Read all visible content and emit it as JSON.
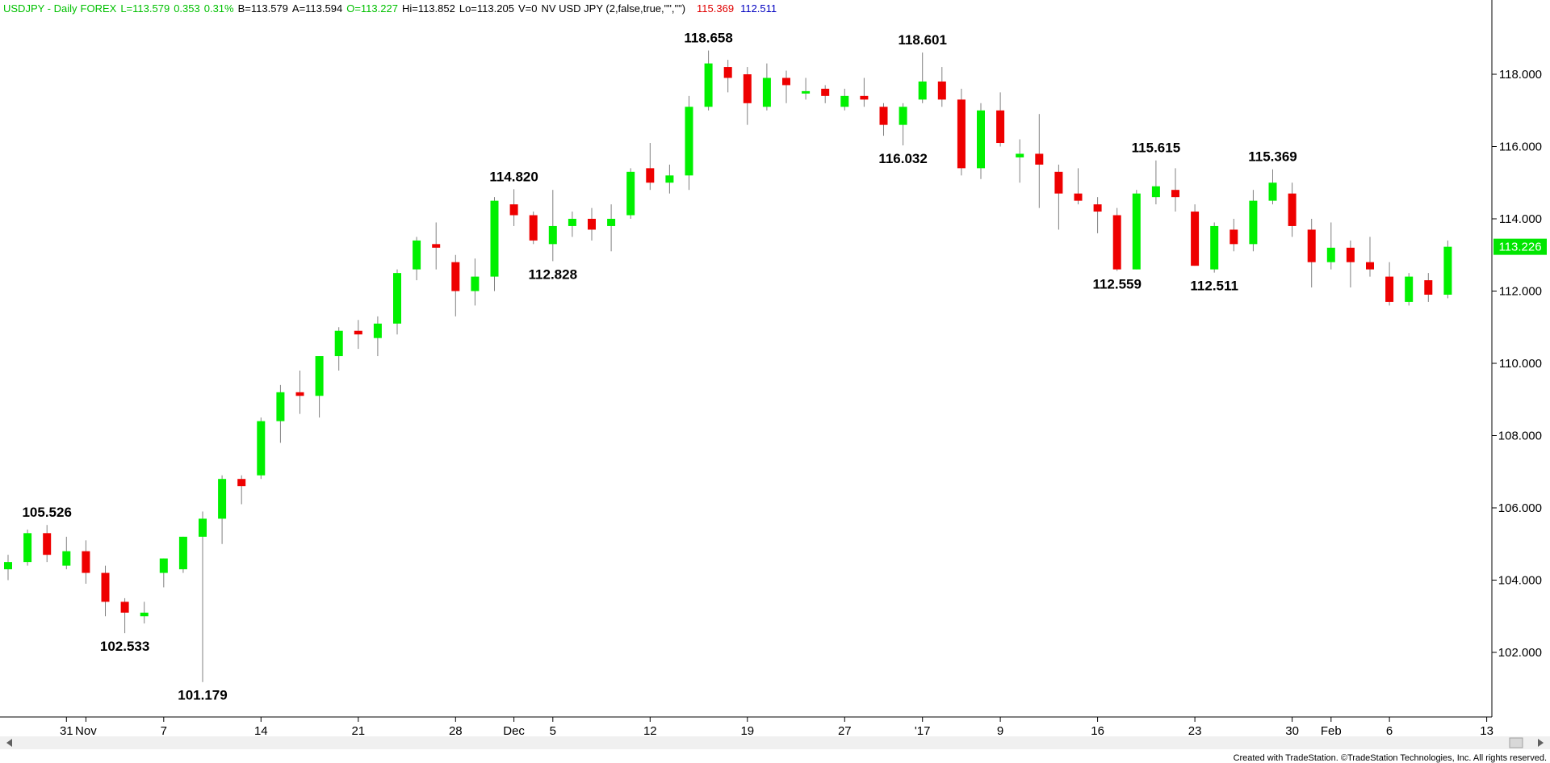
{
  "header": {
    "symbol": "USDJPY",
    "interval": "Daily",
    "market": "FOREX",
    "last": "L=113.579",
    "change": "0.353",
    "change_pct": "0.31%",
    "bid": "B=113.579",
    "ask": "A=113.594",
    "open": "O=113.227",
    "high": "Hi=113.852",
    "low": "Lo=113.205",
    "volume": "V=0",
    "indicator": "NV USD JPY (2,false,true,\"\",\"\")",
    "ind_high": "115.369",
    "ind_low": "112.511"
  },
  "footer": {
    "credit": "Created with TradeStation. ©TradeStation Technologies, Inc. All rights reserved."
  },
  "last_price_label": "113.226",
  "colors": {
    "up": "#00f000",
    "down": "#ee0000",
    "wick": "#808080",
    "header_green": "#00c000",
    "header_red": "#e00000",
    "header_blue": "#0000c0",
    "axis": "#000000",
    "last_price_bg": "#00e600"
  },
  "chart_data": {
    "type": "candlestick",
    "title": "USDJPY - Daily  FOREX",
    "ylim": [
      100,
      120
    ],
    "y_ticks": [
      "102.000",
      "104.000",
      "106.000",
      "108.000",
      "110.000",
      "112.000",
      "114.000",
      "116.000",
      "118.000"
    ],
    "x_ticks": [
      {
        "label": "31",
        "i": 3
      },
      {
        "label": "Nov",
        "i": 4
      },
      {
        "label": "7",
        "i": 8
      },
      {
        "label": "14",
        "i": 13
      },
      {
        "label": "21",
        "i": 18
      },
      {
        "label": "28",
        "i": 23
      },
      {
        "label": "Dec",
        "i": 26
      },
      {
        "label": "5",
        "i": 28
      },
      {
        "label": "12",
        "i": 33
      },
      {
        "label": "19",
        "i": 38
      },
      {
        "label": "27",
        "i": 43
      },
      {
        "label": "'17",
        "i": 47
      },
      {
        "label": "9",
        "i": 51
      },
      {
        "label": "16",
        "i": 56
      },
      {
        "label": "23",
        "i": 61
      },
      {
        "label": "30",
        "i": 66
      },
      {
        "label": "Feb",
        "i": 68
      },
      {
        "label": "6",
        "i": 71
      },
      {
        "label": "13",
        "i": 76
      }
    ],
    "candles": [
      {
        "o": 104.3,
        "h": 104.7,
        "l": 104.0,
        "c": 104.5
      },
      {
        "o": 104.5,
        "h": 105.4,
        "l": 104.4,
        "c": 105.3
      },
      {
        "o": 105.3,
        "h": 105.526,
        "l": 104.5,
        "c": 104.7
      },
      {
        "o": 104.4,
        "h": 105.2,
        "l": 104.3,
        "c": 104.8
      },
      {
        "o": 104.8,
        "h": 105.1,
        "l": 103.9,
        "c": 104.2
      },
      {
        "o": 104.2,
        "h": 104.4,
        "l": 103.0,
        "c": 103.4
      },
      {
        "o": 103.4,
        "h": 103.5,
        "l": 102.533,
        "c": 103.1
      },
      {
        "o": 103.0,
        "h": 103.4,
        "l": 102.8,
        "c": 103.1
      },
      {
        "o": 104.2,
        "h": 104.6,
        "l": 103.8,
        "c": 104.6
      },
      {
        "o": 104.3,
        "h": 105.2,
        "l": 104.2,
        "c": 105.2
      },
      {
        "o": 105.2,
        "h": 105.9,
        "l": 101.179,
        "c": 105.7
      },
      {
        "o": 105.7,
        "h": 106.9,
        "l": 105.0,
        "c": 106.8
      },
      {
        "o": 106.8,
        "h": 106.9,
        "l": 106.1,
        "c": 106.6
      },
      {
        "o": 106.9,
        "h": 108.5,
        "l": 106.8,
        "c": 108.4
      },
      {
        "o": 108.4,
        "h": 109.4,
        "l": 107.8,
        "c": 109.2
      },
      {
        "o": 109.2,
        "h": 109.8,
        "l": 108.6,
        "c": 109.1
      },
      {
        "o": 109.1,
        "h": 110.2,
        "l": 108.5,
        "c": 110.2
      },
      {
        "o": 110.2,
        "h": 111.0,
        "l": 109.8,
        "c": 110.9
      },
      {
        "o": 110.9,
        "h": 111.2,
        "l": 110.4,
        "c": 110.8
      },
      {
        "o": 110.7,
        "h": 111.3,
        "l": 110.2,
        "c": 111.1
      },
      {
        "o": 111.1,
        "h": 112.6,
        "l": 110.8,
        "c": 112.5
      },
      {
        "o": 112.6,
        "h": 113.5,
        "l": 112.3,
        "c": 113.4
      },
      {
        "o": 113.3,
        "h": 113.9,
        "l": 112.6,
        "c": 113.2
      },
      {
        "o": 112.8,
        "h": 113.0,
        "l": 111.3,
        "c": 112.0
      },
      {
        "o": 112.0,
        "h": 112.9,
        "l": 111.6,
        "c": 112.4
      },
      {
        "o": 112.4,
        "h": 114.6,
        "l": 112.0,
        "c": 114.5
      },
      {
        "o": 114.4,
        "h": 114.82,
        "l": 113.8,
        "c": 114.1
      },
      {
        "o": 114.1,
        "h": 114.2,
        "l": 113.3,
        "c": 113.4
      },
      {
        "o": 113.3,
        "h": 114.8,
        "l": 112.828,
        "c": 113.8
      },
      {
        "o": 113.8,
        "h": 114.2,
        "l": 113.5,
        "c": 114.0
      },
      {
        "o": 114.0,
        "h": 114.3,
        "l": 113.4,
        "c": 113.7
      },
      {
        "o": 113.8,
        "h": 114.4,
        "l": 113.1,
        "c": 114.0
      },
      {
        "o": 114.1,
        "h": 115.4,
        "l": 114.0,
        "c": 115.3
      },
      {
        "o": 115.4,
        "h": 116.1,
        "l": 114.8,
        "c": 115.0
      },
      {
        "o": 115.0,
        "h": 115.5,
        "l": 114.7,
        "c": 115.2
      },
      {
        "o": 115.2,
        "h": 117.4,
        "l": 114.8,
        "c": 117.1
      },
      {
        "o": 117.1,
        "h": 118.658,
        "l": 117.0,
        "c": 118.3
      },
      {
        "o": 118.2,
        "h": 118.4,
        "l": 117.5,
        "c": 117.9
      },
      {
        "o": 118.0,
        "h": 118.2,
        "l": 116.6,
        "c": 117.2
      },
      {
        "o": 117.1,
        "h": 118.3,
        "l": 117.0,
        "c": 117.9
      },
      {
        "o": 117.9,
        "h": 118.1,
        "l": 117.2,
        "c": 117.7
      },
      {
        "o": 117.5,
        "h": 117.9,
        "l": 117.3,
        "c": 117.5
      },
      {
        "o": 117.6,
        "h": 117.7,
        "l": 117.2,
        "c": 117.4
      },
      {
        "o": 117.1,
        "h": 117.6,
        "l": 117.0,
        "c": 117.4
      },
      {
        "o": 117.4,
        "h": 117.9,
        "l": 117.1,
        "c": 117.3
      },
      {
        "o": 117.1,
        "h": 117.2,
        "l": 116.3,
        "c": 116.6
      },
      {
        "o": 116.6,
        "h": 117.2,
        "l": 116.032,
        "c": 117.1
      },
      {
        "o": 117.3,
        "h": 118.601,
        "l": 117.2,
        "c": 117.8
      },
      {
        "o": 117.8,
        "h": 118.2,
        "l": 117.1,
        "c": 117.3
      },
      {
        "o": 117.3,
        "h": 117.6,
        "l": 115.2,
        "c": 115.4
      },
      {
        "o": 115.4,
        "h": 117.2,
        "l": 115.1,
        "c": 117.0
      },
      {
        "o": 117.0,
        "h": 117.5,
        "l": 116.0,
        "c": 116.1
      },
      {
        "o": 115.7,
        "h": 116.2,
        "l": 115.0,
        "c": 115.8
      },
      {
        "o": 115.8,
        "h": 116.9,
        "l": 114.3,
        "c": 115.5
      },
      {
        "o": 115.3,
        "h": 115.5,
        "l": 113.7,
        "c": 114.7
      },
      {
        "o": 114.7,
        "h": 115.4,
        "l": 114.4,
        "c": 114.5
      },
      {
        "o": 114.4,
        "h": 114.6,
        "l": 113.6,
        "c": 114.2
      },
      {
        "o": 114.1,
        "h": 114.3,
        "l": 112.559,
        "c": 112.6
      },
      {
        "o": 112.6,
        "h": 114.8,
        "l": 112.6,
        "c": 114.7
      },
      {
        "o": 114.6,
        "h": 115.615,
        "l": 114.4,
        "c": 114.9
      },
      {
        "o": 114.8,
        "h": 115.4,
        "l": 114.2,
        "c": 114.6
      },
      {
        "o": 114.2,
        "h": 114.4,
        "l": 112.7,
        "c": 112.7
      },
      {
        "o": 112.6,
        "h": 113.9,
        "l": 112.511,
        "c": 113.8
      },
      {
        "o": 113.7,
        "h": 114.0,
        "l": 113.1,
        "c": 113.3
      },
      {
        "o": 113.3,
        "h": 114.8,
        "l": 113.1,
        "c": 114.5
      },
      {
        "o": 114.5,
        "h": 115.369,
        "l": 114.4,
        "c": 115.0
      },
      {
        "o": 114.7,
        "h": 115.0,
        "l": 113.5,
        "c": 113.8
      },
      {
        "o": 113.7,
        "h": 114.0,
        "l": 112.1,
        "c": 112.8
      },
      {
        "o": 112.8,
        "h": 113.9,
        "l": 112.6,
        "c": 113.2
      },
      {
        "o": 113.2,
        "h": 113.4,
        "l": 112.1,
        "c": 112.8
      },
      {
        "o": 112.8,
        "h": 113.5,
        "l": 112.4,
        "c": 112.6
      },
      {
        "o": 112.4,
        "h": 112.8,
        "l": 111.6,
        "c": 111.7
      },
      {
        "o": 111.7,
        "h": 112.5,
        "l": 111.6,
        "c": 112.4
      },
      {
        "o": 112.3,
        "h": 112.5,
        "l": 111.7,
        "c": 111.9
      },
      {
        "o": 111.9,
        "h": 113.4,
        "l": 111.8,
        "c": 113.226
      }
    ],
    "annotations": [
      {
        "text": "105.526",
        "i": 2,
        "price": 105.526,
        "pos": "above"
      },
      {
        "text": "102.533",
        "i": 6,
        "price": 102.533,
        "pos": "below"
      },
      {
        "text": "101.179",
        "i": 10,
        "price": 101.179,
        "pos": "below"
      },
      {
        "text": "114.820",
        "i": 26,
        "price": 114.82,
        "pos": "above"
      },
      {
        "text": "112.828",
        "i": 28,
        "price": 112.828,
        "pos": "below"
      },
      {
        "text": "118.658",
        "i": 36,
        "price": 118.658,
        "pos": "above"
      },
      {
        "text": "116.032",
        "i": 46,
        "price": 116.032,
        "pos": "below"
      },
      {
        "text": "118.601",
        "i": 47,
        "price": 118.601,
        "pos": "above"
      },
      {
        "text": "112.559",
        "i": 57,
        "price": 112.559,
        "pos": "below"
      },
      {
        "text": "115.615",
        "i": 59,
        "price": 115.615,
        "pos": "above"
      },
      {
        "text": "112.511",
        "i": 62,
        "price": 112.511,
        "pos": "below"
      },
      {
        "text": "115.369",
        "i": 65,
        "price": 115.369,
        "pos": "above"
      }
    ]
  }
}
